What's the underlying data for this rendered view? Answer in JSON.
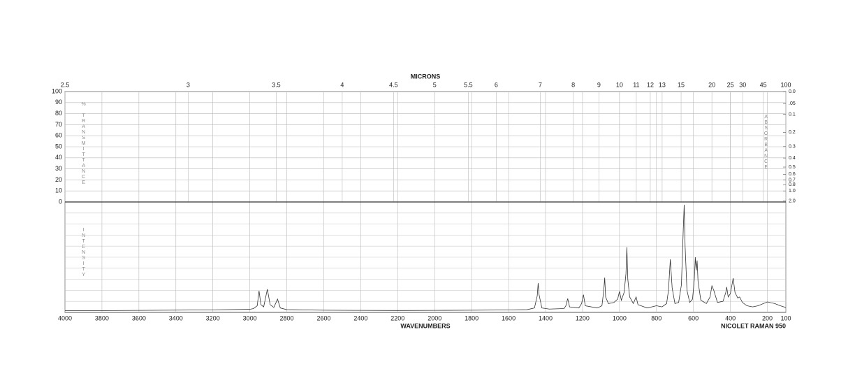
{
  "chart_data": {
    "type": "line",
    "title": "MICRONS",
    "x_label": "WAVENUMBERS",
    "instrument": "NICOLET RAMAN 950",
    "y_label": "% TRANSMITTANCE",
    "y2_label": "ABSORBANCE",
    "intensity_label": "INTENSITY",
    "color": "#333333",
    "grid": true,
    "xlim": [
      4000,
      100
    ],
    "xticks": [
      4000,
      3800,
      3600,
      3400,
      3200,
      3000,
      2800,
      2600,
      2400,
      2200,
      2000,
      1800,
      1600,
      1400,
      1200,
      1000,
      800,
      600,
      400,
      200,
      100
    ],
    "x2ticks": [
      2.5,
      3,
      3.5,
      4,
      4.5,
      5,
      5.5,
      6,
      7,
      8,
      9,
      10,
      11,
      12,
      13,
      15,
      20,
      25,
      30,
      45,
      100
    ],
    "ylim": [
      0,
      100
    ],
    "yticks": [
      100,
      90,
      80,
      70,
      60,
      50,
      40,
      30,
      20,
      10,
      0
    ],
    "y2ticks": [
      {
        "value": 0,
        "label": "0.0"
      },
      {
        "value": 0.05,
        "label": ".05"
      },
      0.1,
      0.2,
      0.3,
      0.4,
      0.5,
      0.6,
      0.7,
      0.8,
      {
        "value": 1,
        "label": "1.0"
      },
      {
        "value": 2,
        "label": "2.0"
      }
    ],
    "intensity_lim": [
      0,
      100
    ],
    "x": [
      4000,
      3600,
      3200,
      3000,
      2980,
      2960,
      2950,
      2940,
      2925,
      2905,
      2890,
      2870,
      2850,
      2835,
      2800,
      2600,
      2400,
      2200,
      2000,
      1800,
      1600,
      1500,
      1460,
      1445,
      1440,
      1435,
      1430,
      1420,
      1380,
      1300,
      1290,
      1280,
      1270,
      1220,
      1205,
      1195,
      1185,
      1120,
      1095,
      1085,
      1080,
      1075,
      1060,
      1030,
      1010,
      1000,
      990,
      975,
      965,
      960,
      955,
      945,
      925,
      915,
      910,
      900,
      850,
      800,
      770,
      745,
      735,
      725,
      715,
      700,
      680,
      665,
      655,
      650,
      645,
      635,
      620,
      605,
      595,
      590,
      585,
      580,
      575,
      560,
      530,
      510,
      500,
      490,
      470,
      440,
      425,
      420,
      412,
      400,
      385,
      375,
      360,
      350,
      335,
      310,
      280,
      250,
      200,
      160,
      130,
      100
    ],
    "values": [
      1.5,
      1.8,
      2.3,
      2.8,
      3.5,
      6,
      19.5,
      7,
      5,
      21,
      7,
      4.5,
      12,
      4,
      2.5,
      2,
      1.8,
      1.7,
      1.8,
      2,
      2.2,
      2.5,
      4,
      15,
      26.5,
      16,
      12,
      4,
      3,
      3.5,
      6,
      12.5,
      5,
      4,
      8,
      16,
      6,
      4,
      6,
      20,
      31.5,
      14,
      8,
      9,
      12,
      19,
      11,
      18,
      35,
      59,
      30,
      14,
      8,
      12,
      14,
      7,
      4,
      6,
      5,
      8,
      20,
      48,
      22,
      8,
      9,
      25,
      75,
      97.5,
      60,
      20,
      9,
      12,
      30,
      50,
      38,
      47,
      28,
      11,
      8,
      14,
      24,
      20,
      9,
      10,
      18,
      23,
      14,
      17,
      31,
      18,
      13,
      14,
      9,
      6,
      5,
      6,
      9.5,
      8,
      6,
      4.4
    ]
  }
}
